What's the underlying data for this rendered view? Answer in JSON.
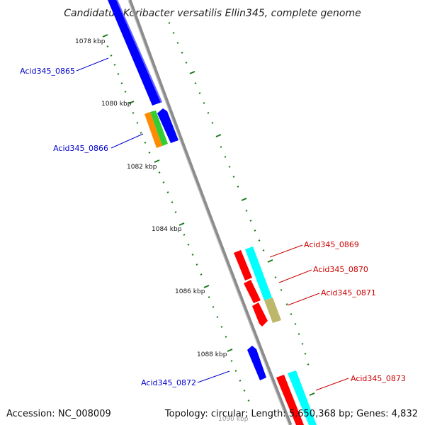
{
  "title": "Candidatus Koribacter versatilis Ellin345, complete genome",
  "footer": {
    "accession": "Accession: NC_008009",
    "topology": "Topology: circular; Length: 5,650,368 bp; Genes: 4,832"
  },
  "scale_labels": [
    "1078 kbp",
    "1080 kbp",
    "1082 kbp",
    "1084 kbp",
    "1086 kbp",
    "1088 kbp",
    "1090 kbp"
  ],
  "gene_labels": [
    {
      "name": "Acid345_0865",
      "side": "left"
    },
    {
      "name": "Acid345_0866",
      "side": "left"
    },
    {
      "name": "Acid345_0869",
      "side": "right"
    },
    {
      "name": "Acid345_0870",
      "side": "right"
    },
    {
      "name": "Acid345_0871",
      "side": "right"
    },
    {
      "name": "Acid345_0872",
      "side": "left"
    },
    {
      "name": "Acid345_0873",
      "side": "right"
    }
  ],
  "colors": {
    "backbone": "#8c8c8c",
    "left_label": "#0000cc",
    "right_label": "#cc0000",
    "ticks": "#1a7a1a",
    "blue": "#0000ff",
    "orange": "#ff8c00",
    "green": "#33cc33",
    "red": "#ff0000",
    "cyan": "#00ffff",
    "khaki": "#bdb76b"
  }
}
